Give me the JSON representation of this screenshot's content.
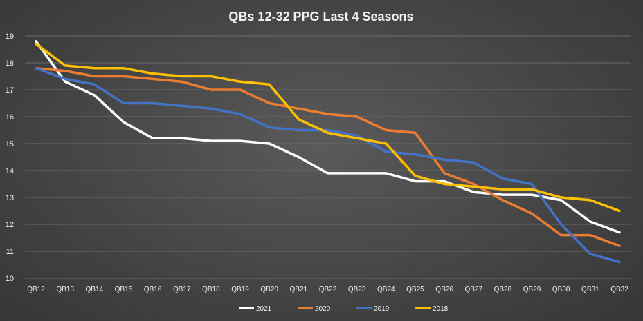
{
  "chart_data": {
    "type": "line",
    "title": "QBs 12-32 PPG Last 4 Seasons",
    "xlabel": "",
    "ylabel": "",
    "ylim": [
      10,
      19
    ],
    "yticks": [
      10,
      11,
      12,
      13,
      14,
      15,
      16,
      17,
      18,
      19
    ],
    "grid": true,
    "legend_position": "bottom",
    "categories": [
      "QB12",
      "QB13",
      "QB14",
      "QB15",
      "QB16",
      "QB17",
      "QB18",
      "QB19",
      "QB20",
      "QB21",
      "QB22",
      "QB23",
      "QB24",
      "QB25",
      "QB26",
      "QB27",
      "QB28",
      "QB29",
      "QB30",
      "QB31",
      "QB32"
    ],
    "series": [
      {
        "name": "2021",
        "color": "#ffffff",
        "values": [
          18.8,
          17.3,
          16.8,
          15.8,
          15.2,
          15.2,
          15.1,
          15.1,
          15.0,
          14.5,
          13.9,
          13.9,
          13.9,
          13.6,
          13.6,
          13.2,
          13.1,
          13.1,
          12.9,
          12.1,
          11.7
        ]
      },
      {
        "name": "2020",
        "color": "#ed7d31",
        "values": [
          17.8,
          17.7,
          17.5,
          17.5,
          17.4,
          17.3,
          17.0,
          17.0,
          16.5,
          16.3,
          16.1,
          16.0,
          15.5,
          15.4,
          13.9,
          13.5,
          12.9,
          12.4,
          11.6,
          11.6,
          11.2
        ]
      },
      {
        "name": "2019",
        "color": "#4472c4",
        "values": [
          17.8,
          17.4,
          17.2,
          16.5,
          16.5,
          16.4,
          16.3,
          16.1,
          15.6,
          15.5,
          15.5,
          15.3,
          14.7,
          14.6,
          14.4,
          14.3,
          13.7,
          13.5,
          12.0,
          10.9,
          10.6
        ]
      },
      {
        "name": "2018",
        "color": "#ffc000",
        "values": [
          18.7,
          17.9,
          17.8,
          17.8,
          17.6,
          17.5,
          17.5,
          17.3,
          17.2,
          15.9,
          15.4,
          15.2,
          15.0,
          13.8,
          13.5,
          13.4,
          13.3,
          13.3,
          13.0,
          12.9,
          12.5
        ]
      }
    ]
  }
}
